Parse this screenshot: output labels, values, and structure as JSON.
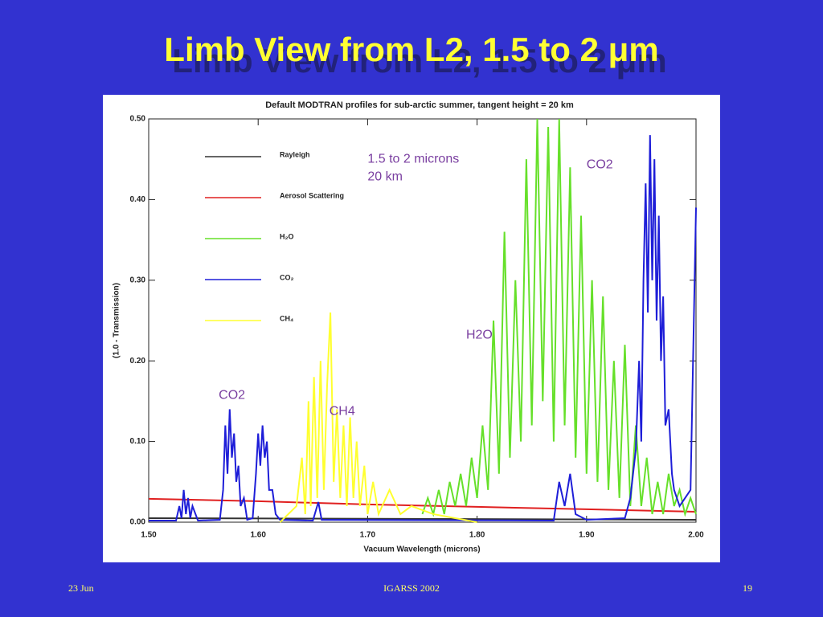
{
  "slide": {
    "title": "Limb View from L2, 1.5 to 2 μm",
    "footer": {
      "date": "23 Jun",
      "event": "IGARSS 2002",
      "page": "19"
    }
  },
  "chart_data": {
    "type": "line",
    "title": "Default MODTRAN profiles for sub-arctic summer, tangent height = 20 km",
    "xlabel": "Vacuum Wavelength (microns)",
    "ylabel": "(1.0 - Transmission)",
    "xlim": [
      1.5,
      2.0
    ],
    "ylim": [
      0,
      0.5
    ],
    "xticks": [
      {
        "value": 1.5,
        "label": "1.50"
      },
      {
        "value": 1.6,
        "label": "1.60"
      },
      {
        "value": 1.7,
        "label": "1.70"
      },
      {
        "value": 1.8,
        "label": "1.80"
      },
      {
        "value": 1.9,
        "label": "1.90"
      },
      {
        "value": 2.0,
        "label": "2.00"
      }
    ],
    "yticks": [
      {
        "value": 0,
        "label": "0.00"
      },
      {
        "value": 0.1,
        "label": "0.10"
      },
      {
        "value": 0.2,
        "label": "0.20"
      },
      {
        "value": 0.3,
        "label": "0.30"
      },
      {
        "value": 0.4,
        "label": "0.40"
      },
      {
        "value": 0.5,
        "label": "0.50"
      }
    ],
    "legend": "upper left",
    "series": [
      {
        "name": "Rayleigh",
        "color": "#333333",
        "x": [
          1.5,
          2.0
        ],
        "values": [
          0.005,
          0.003
        ]
      },
      {
        "name": "Aerosol Scattering",
        "color": "#e02020",
        "x": [
          1.5,
          1.6,
          1.7,
          1.8,
          1.9,
          2.0
        ],
        "values": [
          0.029,
          0.026,
          0.022,
          0.019,
          0.016,
          0.013
        ]
      },
      {
        "name": "H₂O",
        "color": "#66e02a",
        "x": [
          1.75,
          1.755,
          1.76,
          1.765,
          1.77,
          1.775,
          1.78,
          1.785,
          1.79,
          1.795,
          1.8,
          1.805,
          1.81,
          1.815,
          1.82,
          1.825,
          1.83,
          1.835,
          1.84,
          1.845,
          1.85,
          1.855,
          1.86,
          1.865,
          1.87,
          1.875,
          1.88,
          1.885,
          1.89,
          1.895,
          1.9,
          1.905,
          1.91,
          1.915,
          1.92,
          1.925,
          1.93,
          1.935,
          1.94,
          1.945,
          1.95,
          1.955,
          1.96,
          1.965,
          1.97,
          1.975,
          1.98,
          1.985,
          1.99,
          1.995,
          2.0
        ],
        "values": [
          0.01,
          0.03,
          0.01,
          0.04,
          0.01,
          0.05,
          0.02,
          0.06,
          0.02,
          0.08,
          0.03,
          0.12,
          0.04,
          0.25,
          0.06,
          0.36,
          0.08,
          0.3,
          0.1,
          0.45,
          0.12,
          0.5,
          0.15,
          0.49,
          0.1,
          0.5,
          0.12,
          0.44,
          0.08,
          0.38,
          0.06,
          0.3,
          0.05,
          0.28,
          0.04,
          0.2,
          0.03,
          0.22,
          0.02,
          0.12,
          0.02,
          0.08,
          0.01,
          0.05,
          0.01,
          0.06,
          0.02,
          0.04,
          0.01,
          0.03,
          0.01
        ]
      },
      {
        "name": "CO₂",
        "color": "#1e1ed8",
        "x": [
          1.5,
          1.525,
          1.528,
          1.53,
          1.532,
          1.534,
          1.536,
          1.538,
          1.54,
          1.545,
          1.565,
          1.568,
          1.57,
          1.572,
          1.574,
          1.576,
          1.578,
          1.58,
          1.582,
          1.584,
          1.587,
          1.59,
          1.595,
          1.598,
          1.6,
          1.602,
          1.604,
          1.606,
          1.608,
          1.61,
          1.613,
          1.616,
          1.62,
          1.65,
          1.655,
          1.658,
          1.87,
          1.875,
          1.88,
          1.885,
          1.89,
          1.9,
          1.935,
          1.94,
          1.945,
          1.948,
          1.95,
          1.952,
          1.954,
          1.956,
          1.958,
          1.96,
          1.962,
          1.964,
          1.966,
          1.968,
          1.97,
          1.972,
          1.975,
          1.978,
          1.98,
          1.985,
          1.99,
          1.995,
          1.998,
          2.0
        ],
        "values": [
          0.002,
          0.002,
          0.02,
          0.005,
          0.04,
          0.01,
          0.03,
          0.005,
          0.02,
          0.002,
          0.003,
          0.04,
          0.12,
          0.06,
          0.14,
          0.08,
          0.11,
          0.05,
          0.07,
          0.02,
          0.03,
          0.003,
          0.005,
          0.06,
          0.11,
          0.07,
          0.12,
          0.08,
          0.1,
          0.04,
          0.04,
          0.01,
          0.003,
          0.002,
          0.025,
          0.003,
          0.002,
          0.05,
          0.02,
          0.06,
          0.01,
          0.003,
          0.005,
          0.03,
          0.09,
          0.2,
          0.1,
          0.3,
          0.42,
          0.26,
          0.48,
          0.3,
          0.45,
          0.25,
          0.38,
          0.2,
          0.28,
          0.12,
          0.14,
          0.06,
          0.04,
          0.02,
          0.03,
          0.04,
          0.25,
          0.39
        ]
      },
      {
        "name": "CH₄",
        "color": "#ffff30",
        "x": [
          1.62,
          1.635,
          1.64,
          1.643,
          1.646,
          1.648,
          1.651,
          1.654,
          1.657,
          1.66,
          1.663,
          1.666,
          1.669,
          1.672,
          1.675,
          1.678,
          1.681,
          1.684,
          1.687,
          1.69,
          1.693,
          1.697,
          1.7,
          1.705,
          1.71,
          1.72,
          1.73,
          1.74,
          1.76,
          1.8
        ],
        "values": [
          0,
          0.02,
          0.08,
          0.01,
          0.15,
          0.02,
          0.18,
          0.03,
          0.2,
          0.04,
          0.17,
          0.26,
          0.05,
          0.14,
          0.03,
          0.12,
          0.02,
          0.13,
          0.03,
          0.1,
          0.02,
          0.07,
          0.01,
          0.05,
          0.01,
          0.04,
          0.01,
          0.02,
          0.01,
          0
        ]
      }
    ],
    "annotations": [
      {
        "text": "1.5 to 2 microns",
        "x": 1.7,
        "y": 0.45
      },
      {
        "text": "20 km",
        "x": 1.7,
        "y": 0.428
      },
      {
        "text": "CO2",
        "x": 1.9,
        "y": 0.443
      },
      {
        "text": "H2O",
        "x": 1.79,
        "y": 0.232
      },
      {
        "text": "CO2",
        "x": 1.564,
        "y": 0.157
      },
      {
        "text": "CH4",
        "x": 1.665,
        "y": 0.137
      }
    ]
  }
}
